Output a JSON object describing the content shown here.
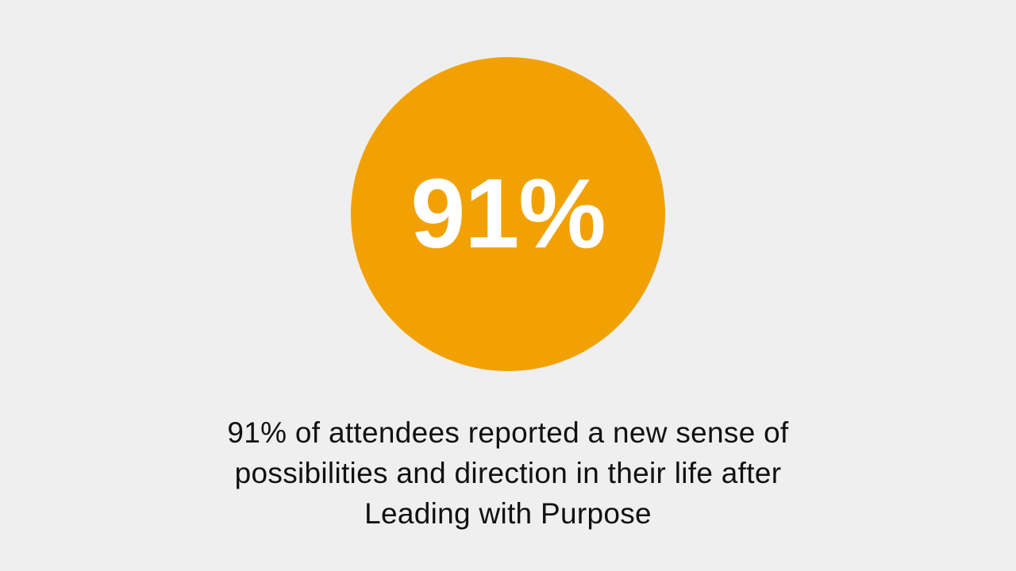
{
  "stat": {
    "value": "91%"
  },
  "caption": {
    "lines": [
      "91%  of attendees reported a new sense of",
      "possibilities and direction in their life after",
      "Leading with Purpose"
    ]
  },
  "colors": {
    "background": "#efefef",
    "accent": "#f2a104",
    "stat_text": "#ffffff",
    "caption_text": "#111111"
  }
}
